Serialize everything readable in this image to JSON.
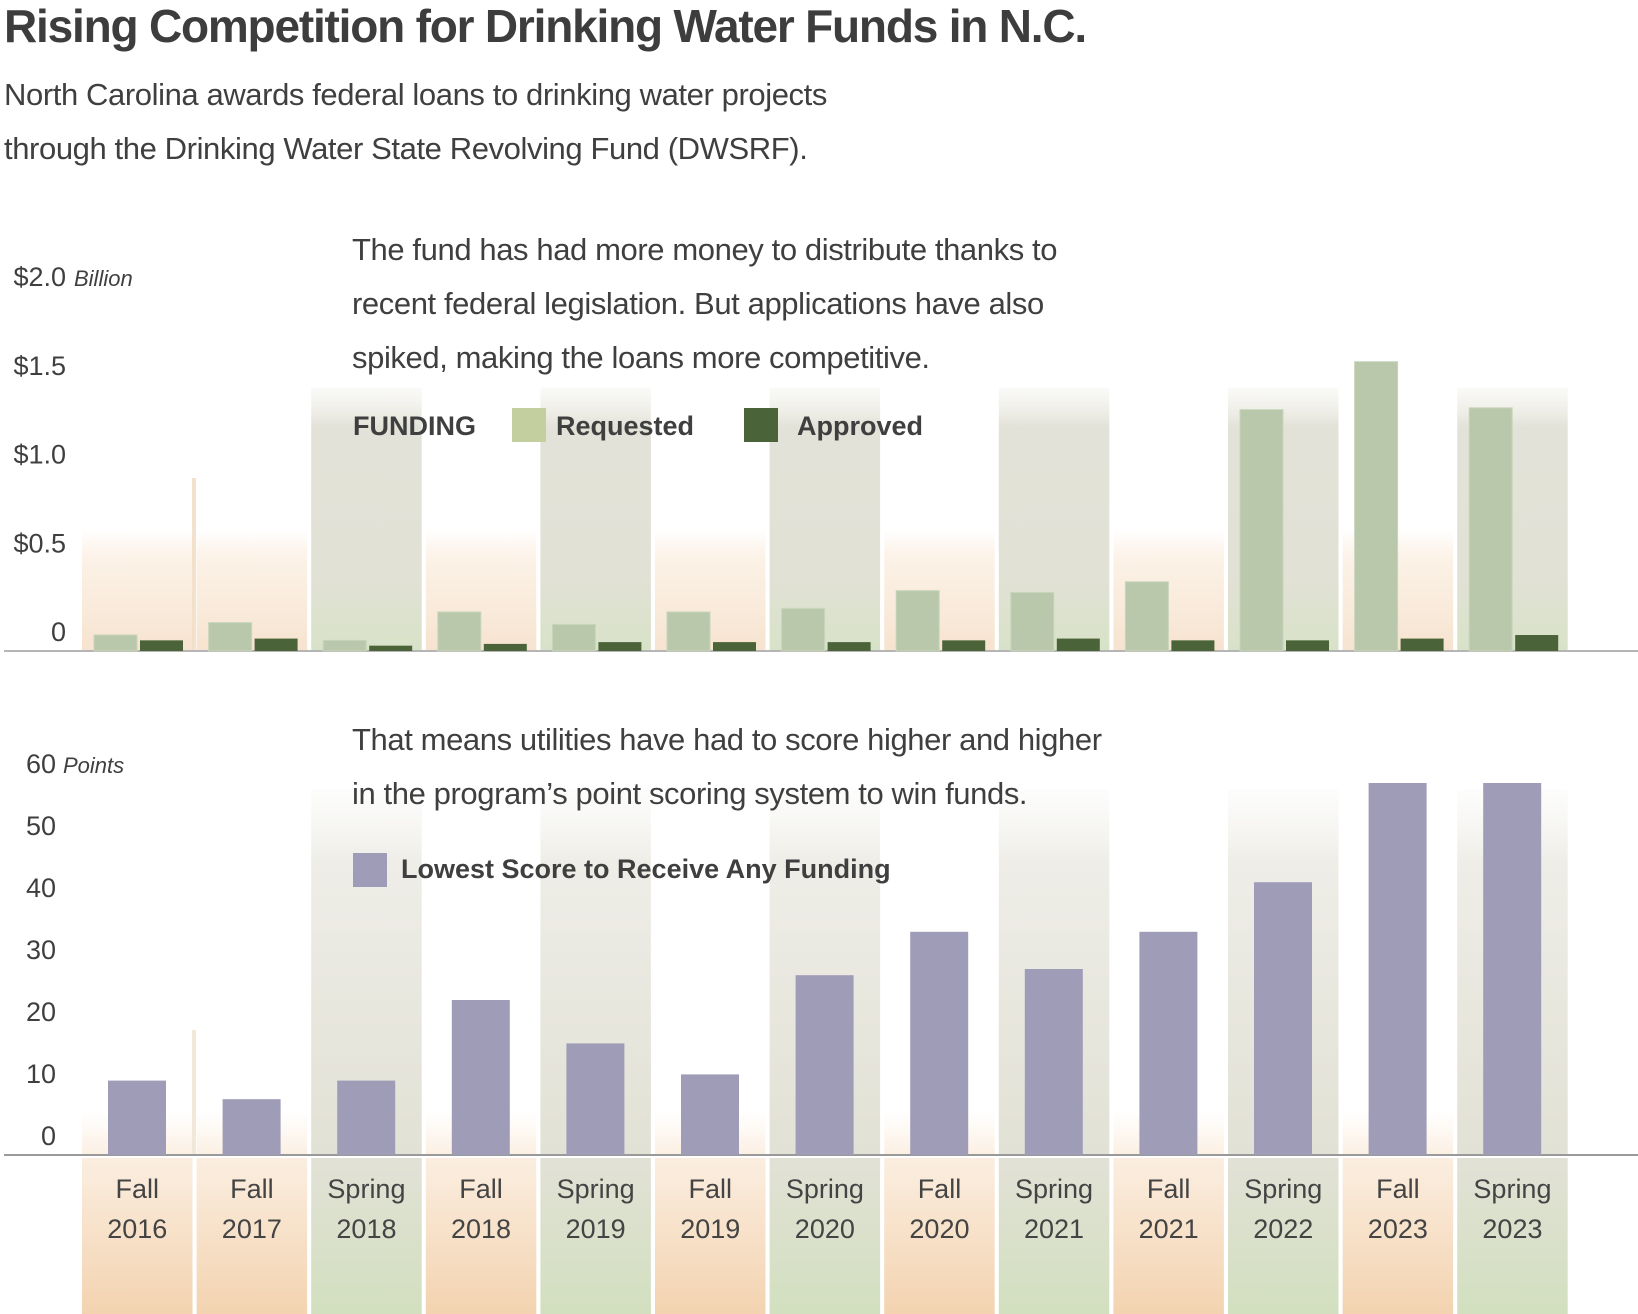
{
  "header": {
    "title": "Rising Competition for Drinking Water Funds in N.C.",
    "subtitle_line1": "North Carolina awards federal loans to drinking water projects",
    "subtitle_line2": "through the Drinking Water State Revolving Fund (DWSRF)."
  },
  "colors": {
    "requested": "#b9c8ab",
    "approved": "#4a6338",
    "legend_requested": "#c4cf9f",
    "score": "#9f9cb8",
    "fall_band": "#f6dcbf",
    "spring_band": "#d5e0c4",
    "spring_shade": "#e2e1d7",
    "gridline": "#a6a6a6",
    "text": "#3f3f3f"
  },
  "chart_data": [
    {
      "type": "bar",
      "title": "Funding",
      "annotation": [
        "The fund has had more money to distribute thanks to",
        "recent federal legislation. But applications have also",
        "spiked, making the loans more competitive."
      ],
      "legend_title": "FUNDING",
      "legend_placement": "top-center",
      "ylabel": "Billion",
      "y_unit_label": "Billion",
      "ylim": [
        0,
        2.0
      ],
      "yticks": [
        0,
        0.5,
        1.0,
        1.5,
        2.0
      ],
      "ytick_labels": [
        "0",
        "$0.5",
        "$1.0",
        "$1.5",
        "$2.0"
      ],
      "minor_grid_step": 0.25,
      "grid": true,
      "categories": [
        "Fall 2016",
        "Fall 2017",
        "Spring 2018",
        "Fall 2018",
        "Spring 2019",
        "Fall 2019",
        "Spring 2020",
        "Fall 2020",
        "Spring 2021",
        "Fall 2021",
        "Spring 2022",
        "Fall 2023",
        "Spring 2023"
      ],
      "series": [
        {
          "name": "Requested",
          "values": [
            0.09,
            0.16,
            0.06,
            0.22,
            0.15,
            0.22,
            0.24,
            0.34,
            0.33,
            0.39,
            1.36,
            1.63,
            1.37
          ]
        },
        {
          "name": "Approved",
          "values": [
            0.06,
            0.07,
            0.03,
            0.04,
            0.05,
            0.05,
            0.05,
            0.06,
            0.07,
            0.06,
            0.06,
            0.07,
            0.09
          ]
        }
      ]
    },
    {
      "type": "bar",
      "title": "Lowest Score to Receive Any Funding",
      "annotation": [
        "That means utilities have had to score higher and higher",
        "in the program’s point scoring system to win funds."
      ],
      "legend_placement": "top-center",
      "ylabel": "Points",
      "y_unit_label": "Points",
      "ylim": [
        0,
        60
      ],
      "yticks": [
        0,
        10,
        20,
        30,
        40,
        50,
        60
      ],
      "ytick_labels": [
        "0",
        "10",
        "20",
        "30",
        "40",
        "50",
        "60"
      ],
      "grid": true,
      "categories": [
        "Fall 2016",
        "Fall 2017",
        "Spring 2018",
        "Fall 2018",
        "Spring 2019",
        "Fall 2019",
        "Spring 2020",
        "Fall 2020",
        "Spring 2021",
        "Fall 2021",
        "Spring 2022",
        "Fall 2023",
        "Spring 2023"
      ],
      "series": [
        {
          "name": "Lowest Score to Receive Any Funding",
          "values": [
            12,
            9,
            12,
            25,
            18,
            13,
            29,
            36,
            30,
            36,
            44,
            60,
            60
          ]
        }
      ]
    }
  ],
  "x_axis": {
    "categories": [
      {
        "season": "Fall",
        "year": "2016"
      },
      {
        "season": "Fall",
        "year": "2017"
      },
      {
        "season": "Spring",
        "year": "2018"
      },
      {
        "season": "Fall",
        "year": "2018"
      },
      {
        "season": "Spring",
        "year": "2019"
      },
      {
        "season": "Fall",
        "year": "2019"
      },
      {
        "season": "Spring",
        "year": "2020"
      },
      {
        "season": "Fall",
        "year": "2020"
      },
      {
        "season": "Spring",
        "year": "2021"
      },
      {
        "season": "Fall",
        "year": "2021"
      },
      {
        "season": "Spring",
        "year": "2022"
      },
      {
        "season": "Fall",
        "year": "2023"
      },
      {
        "season": "Spring",
        "year": "2023"
      }
    ]
  }
}
